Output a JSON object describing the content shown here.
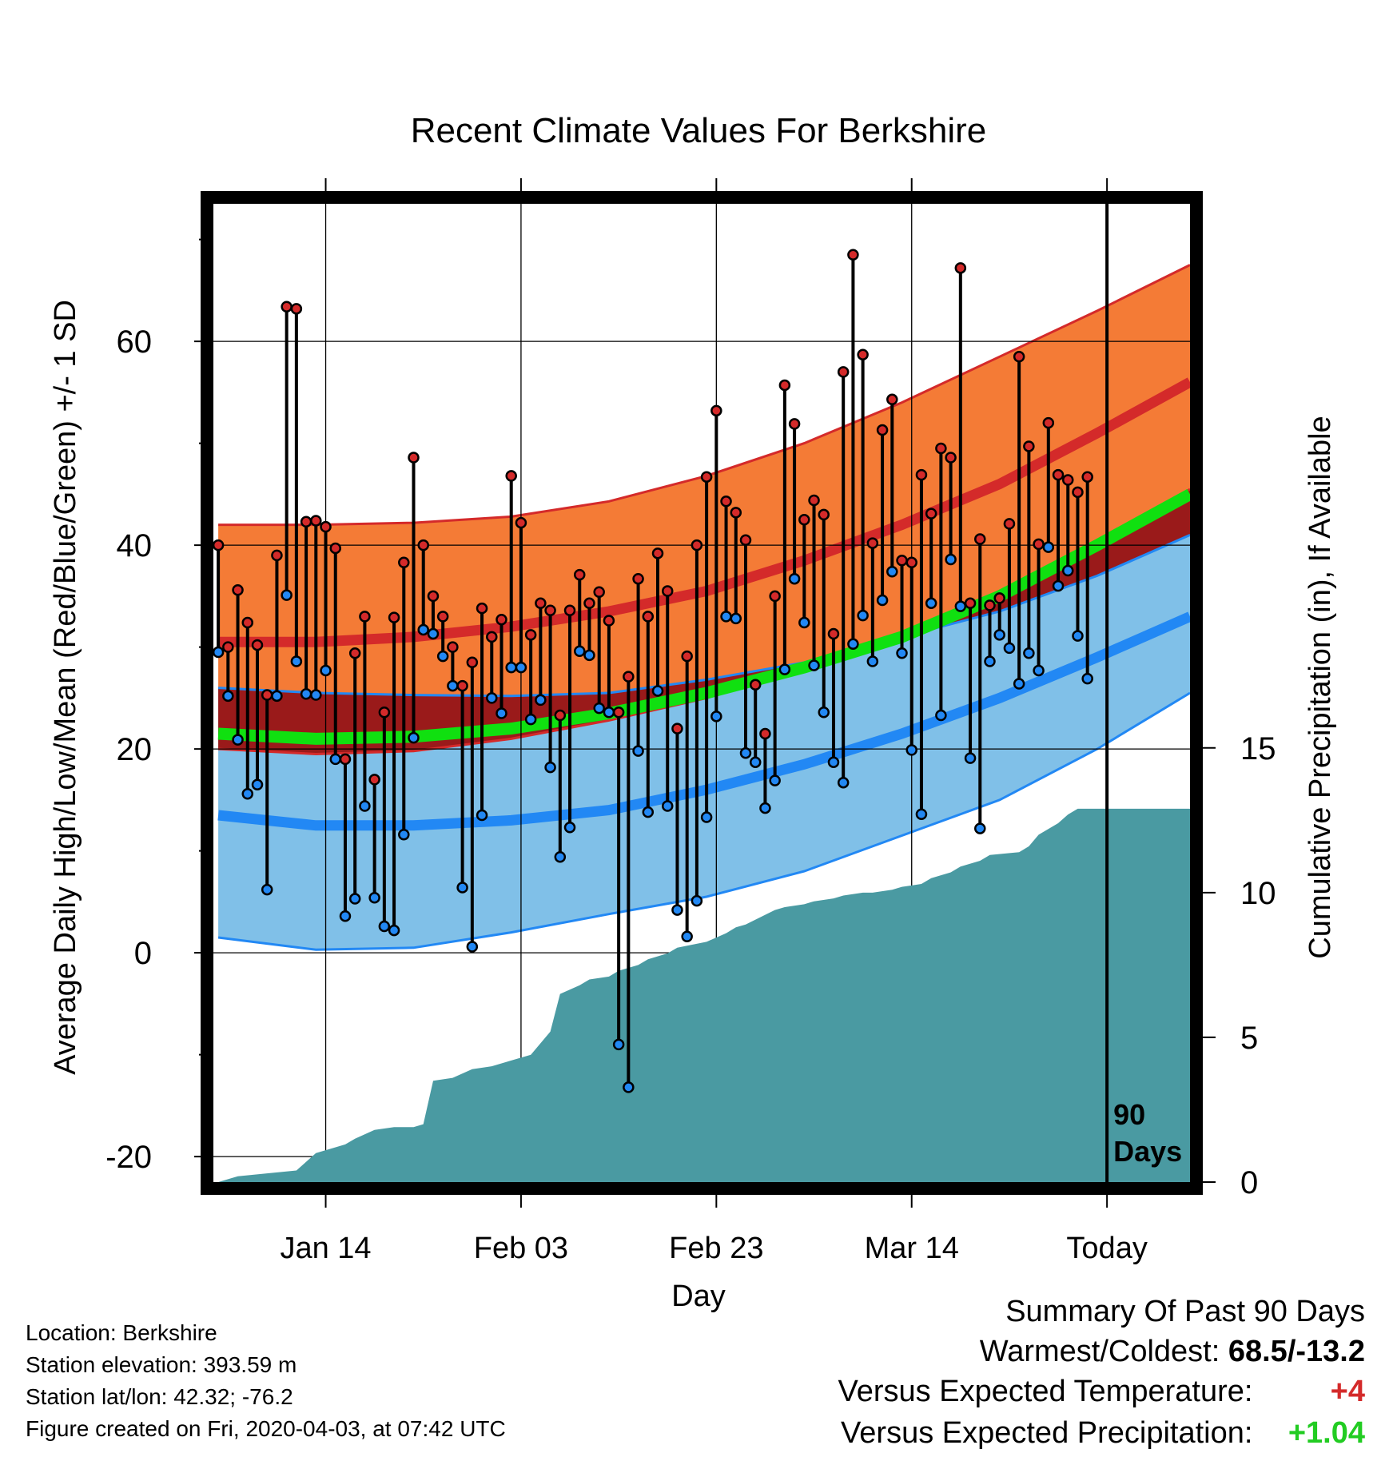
{
  "chart_data": {
    "type": "line",
    "title": "Recent Climate Values For Berkshire",
    "xlabel": "Day",
    "ylabel": "Average Daily High/Low/Mean (Red/Blue/Green) +/- 1 SD",
    "y2label": "Cumulative Precipitation (in), If Available",
    "ylim": [
      -22.5,
      73.5
    ],
    "y2lim": [
      0,
      33.8
    ],
    "xlim": [
      -0.5,
      99.5
    ],
    "y_ticks": [
      "60",
      "40",
      "20",
      "0",
      "-20"
    ],
    "y2_ticks": [
      "15",
      "10",
      "5",
      "0"
    ],
    "x_ticks": [
      {
        "day": 11,
        "label": "Jan 14"
      },
      {
        "day": 31,
        "label": "Feb 03"
      },
      {
        "day": 51,
        "label": "Feb 23"
      },
      {
        "day": 71,
        "label": "Mar 14"
      },
      {
        "day": 91,
        "label": "Today"
      }
    ],
    "today_marker": {
      "day": 91,
      "label_line1": "90",
      "label_line2": "Days"
    },
    "grid": true,
    "colors": {
      "high_band": "#f47b36",
      "high_line": "#d42a2a",
      "overlap_band": "#9a1a1a",
      "low_band": "#80c0e8",
      "low_line": "#2288f4",
      "mean_line": "#10e010",
      "precip_fill": "#4a9aa2",
      "high_dot": "#d42a2a",
      "low_dot": "#2288f4"
    },
    "normals_x": [
      0,
      10,
      20,
      30,
      40,
      50,
      60,
      70,
      80,
      90,
      99.5
    ],
    "normal_high_mean": [
      30.5,
      30.5,
      31.0,
      32.0,
      33.5,
      35.5,
      38.5,
      42.0,
      46.0,
      51.0,
      56.0
    ],
    "normal_high_upper": [
      42.0,
      42.0,
      42.2,
      42.8,
      44.3,
      46.8,
      50.0,
      54.0,
      58.5,
      63.0,
      67.5
    ],
    "normal_high_lower": [
      20.0,
      19.5,
      19.8,
      21.0,
      22.8,
      25.0,
      27.8,
      31.0,
      35.0,
      40.0,
      45.5
    ],
    "normal_low_mean": [
      13.5,
      12.5,
      12.5,
      13.0,
      14.0,
      16.0,
      18.5,
      21.5,
      25.0,
      29.0,
      33.0
    ],
    "normal_low_upper": [
      26.0,
      25.5,
      25.3,
      25.2,
      25.5,
      26.8,
      28.5,
      31.0,
      33.5,
      37.0,
      41.0
    ],
    "normal_low_lower": [
      1.5,
      0.3,
      0.5,
      2.0,
      3.8,
      5.5,
      8.0,
      11.5,
      15.0,
      20.0,
      25.5
    ],
    "normal_mean": [
      21.5,
      21.0,
      21.2,
      22.0,
      23.5,
      25.5,
      28.0,
      31.0,
      35.0,
      40.0,
      45.0
    ],
    "daily_high": [
      40.0,
      30.0,
      35.6,
      32.4,
      30.2,
      25.3,
      39.0,
      63.4,
      63.2,
      42.3,
      42.4,
      41.8,
      39.7,
      19.0,
      29.4,
      33.0,
      17.0,
      23.6,
      32.9,
      38.3,
      48.6,
      40.0,
      35.0,
      33.0,
      30.0,
      26.2,
      28.5,
      33.8,
      31.0,
      32.7,
      46.8,
      42.2,
      31.2,
      34.3,
      33.6,
      23.3,
      33.6,
      37.1,
      34.3,
      35.4,
      32.6,
      23.6,
      27.1,
      36.7,
      33.0,
      39.2,
      35.5,
      22.0,
      29.1,
      40.0,
      46.7,
      53.2,
      44.3,
      43.2,
      40.5,
      26.3,
      21.5,
      35.0,
      55.7,
      51.9,
      42.5,
      44.4,
      43.0,
      31.3,
      57.0,
      68.5,
      58.7,
      40.2,
      51.3,
      54.3,
      38.5,
      38.3,
      46.9,
      43.1,
      49.5,
      48.6,
      67.2,
      34.3,
      40.6,
      34.1,
      34.8,
      42.1,
      58.5,
      49.7,
      40.1,
      52.0,
      46.9,
      46.4,
      45.2,
      46.7
    ],
    "daily_low": [
      29.5,
      25.2,
      20.9,
      15.6,
      16.5,
      6.2,
      25.2,
      35.1,
      28.6,
      25.4,
      25.3,
      27.7,
      19.0,
      3.6,
      5.3,
      14.4,
      5.4,
      2.6,
      2.2,
      11.6,
      21.1,
      31.7,
      31.3,
      29.1,
      26.2,
      6.4,
      0.6,
      13.5,
      25.0,
      23.5,
      28.0,
      28.0,
      22.9,
      24.8,
      18.2,
      9.4,
      12.3,
      29.6,
      29.2,
      24.0,
      23.6,
      -9.0,
      -13.2,
      19.8,
      13.8,
      25.7,
      14.4,
      4.2,
      1.6,
      5.1,
      13.3,
      23.2,
      33.0,
      32.8,
      19.6,
      18.7,
      14.2,
      16.9,
      27.8,
      36.7,
      32.4,
      28.2,
      23.6,
      18.7,
      16.7,
      30.3,
      33.1,
      28.6,
      34.6,
      37.4,
      29.4,
      19.9,
      13.6,
      34.3,
      23.3,
      38.6,
      34.0,
      19.1,
      12.2,
      28.6,
      31.2,
      29.9,
      26.4,
      29.4,
      27.7,
      39.8,
      36.0,
      37.5,
      31.1,
      26.9
    ],
    "precip_x": [
      0,
      1,
      2,
      5,
      8,
      10,
      12,
      13,
      14,
      16,
      18,
      20,
      21,
      22,
      24,
      26,
      28,
      29,
      30,
      32,
      33,
      34,
      35,
      37,
      38,
      40,
      41,
      43,
      44,
      46,
      47,
      50,
      52,
      53,
      54,
      57,
      58,
      60,
      61,
      63,
      64,
      66,
      67,
      69,
      70,
      72,
      73,
      75,
      76,
      78,
      79,
      82,
      83,
      84,
      86,
      87,
      88,
      91,
      99.5
    ],
    "precip_y": [
      0.0,
      0.1,
      0.2,
      0.3,
      0.4,
      1.0,
      1.2,
      1.3,
      1.5,
      1.8,
      1.9,
      1.9,
      2.0,
      3.5,
      3.6,
      3.9,
      4.0,
      4.1,
      4.2,
      4.4,
      4.8,
      5.2,
      6.5,
      6.8,
      7.0,
      7.1,
      7.3,
      7.5,
      7.7,
      7.9,
      8.1,
      8.3,
      8.6,
      8.8,
      8.9,
      9.4,
      9.5,
      9.6,
      9.7,
      9.8,
      9.9,
      10.0,
      10.0,
      10.1,
      10.2,
      10.3,
      10.5,
      10.7,
      10.9,
      11.1,
      11.3,
      11.4,
      11.6,
      12.0,
      12.4,
      12.7,
      12.9,
      12.9,
      12.9
    ]
  },
  "footer": {
    "location": "Location: Berkshire",
    "elevation": "Station elevation: 393.59 m",
    "latlon": "Station lat/lon: 42.32; -76.2",
    "created": "Figure created on Fri, 2020-04-03, at 07:42 UTC"
  },
  "summary": {
    "heading": "Summary Of Past 90 Days",
    "warm_cold_label": "Warmest/Coldest:",
    "warm_cold_value": "68.5/-13.2",
    "temp_label": "Versus Expected Temperature:",
    "temp_value": "+4",
    "temp_color": "#d42a2a",
    "precip_label": "Versus Expected Precipitation:",
    "precip_value": "+1.04",
    "precip_color": "#22cc22"
  }
}
